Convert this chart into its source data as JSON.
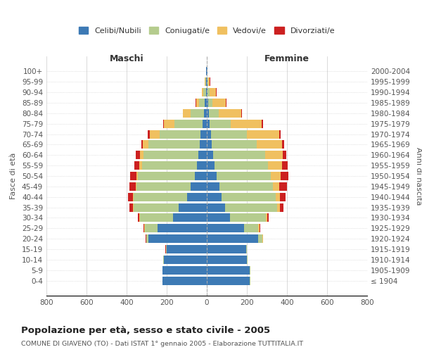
{
  "age_groups": [
    "100+",
    "95-99",
    "90-94",
    "85-89",
    "80-84",
    "75-79",
    "70-74",
    "65-69",
    "60-64",
    "55-59",
    "50-54",
    "45-49",
    "40-44",
    "35-39",
    "30-34",
    "25-29",
    "20-24",
    "15-19",
    "10-14",
    "5-9",
    "0-4"
  ],
  "birth_years": [
    "≤ 1904",
    "1905-1909",
    "1910-1914",
    "1915-1919",
    "1920-1924",
    "1925-1929",
    "1930-1934",
    "1935-1939",
    "1940-1944",
    "1945-1949",
    "1950-1954",
    "1955-1959",
    "1960-1964",
    "1965-1969",
    "1970-1974",
    "1975-1979",
    "1980-1984",
    "1985-1989",
    "1990-1994",
    "1995-1999",
    "2000-2004"
  ],
  "male": {
    "celibi": [
      2,
      3,
      5,
      10,
      15,
      22,
      30,
      35,
      42,
      48,
      58,
      80,
      100,
      140,
      170,
      245,
      290,
      200,
      215,
      220,
      220
    ],
    "coniugati": [
      1,
      4,
      12,
      28,
      65,
      140,
      205,
      255,
      275,
      275,
      285,
      270,
      265,
      225,
      165,
      65,
      12,
      4,
      2,
      2,
      2
    ],
    "vedovi": [
      1,
      2,
      6,
      15,
      38,
      52,
      50,
      28,
      18,
      14,
      8,
      5,
      4,
      4,
      2,
      2,
      1,
      1,
      0,
      0,
      0
    ],
    "divorziati": [
      0,
      0,
      1,
      2,
      2,
      5,
      8,
      10,
      18,
      25,
      32,
      32,
      25,
      18,
      8,
      4,
      2,
      1,
      0,
      0,
      0
    ]
  },
  "female": {
    "nubili": [
      2,
      3,
      4,
      7,
      10,
      13,
      20,
      25,
      30,
      38,
      48,
      62,
      72,
      90,
      115,
      185,
      255,
      195,
      200,
      215,
      215
    ],
    "coniugate": [
      1,
      4,
      10,
      22,
      48,
      105,
      180,
      225,
      262,
      268,
      272,
      268,
      272,
      262,
      178,
      72,
      22,
      4,
      2,
      2,
      2
    ],
    "vedove": [
      2,
      8,
      32,
      65,
      115,
      155,
      160,
      125,
      88,
      68,
      48,
      32,
      22,
      14,
      9,
      5,
      3,
      1,
      1,
      1,
      1
    ],
    "divorziate": [
      0,
      1,
      2,
      3,
      4,
      8,
      10,
      12,
      18,
      28,
      38,
      38,
      26,
      16,
      7,
      3,
      1,
      1,
      0,
      0,
      0
    ]
  },
  "colors": {
    "celibi": "#3d7ab5",
    "coniugati": "#b5cc8e",
    "vedovi": "#f0c060",
    "divorziati": "#cc2020"
  },
  "title": "Popolazione per età, sesso e stato civile - 2005",
  "subtitle": "COMUNE DI GIAVENO (TO) - Dati ISTAT 1° gennaio 2005 - Elaborazione TUTTITALIA.IT",
  "xlabel_left": "Maschi",
  "xlabel_right": "Femmine",
  "ylabel_left": "Fasce di età",
  "ylabel_right": "Anni di nascita",
  "xlim": 800,
  "legend_labels": [
    "Celibi/Nubili",
    "Coniugati/e",
    "Vedovi/e",
    "Divorziati/e"
  ],
  "background_color": "#ffffff",
  "grid_color": "#cccccc"
}
